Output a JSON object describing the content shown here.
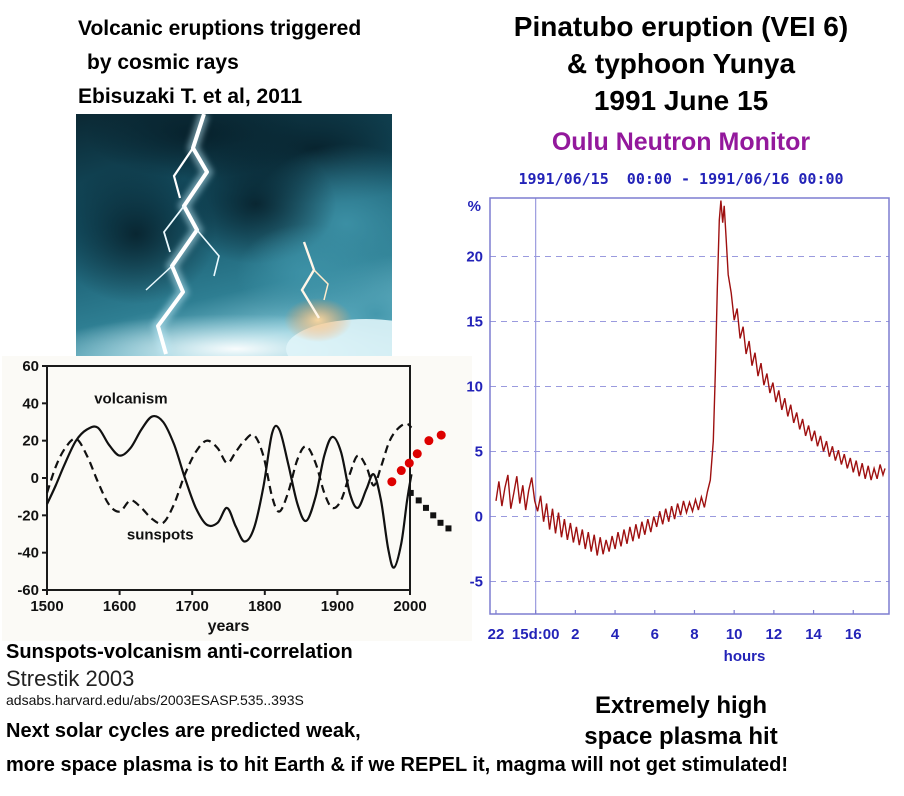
{
  "left": {
    "header_lines": [
      "Volcanic eruptions triggered",
      "by cosmic rays",
      "Ebisuzaki T. et al, 2011"
    ],
    "caption_bold": "Sunspots-volcanism anti-correlation",
    "caption_author": "Strestik 2003",
    "caption_url": "adsabs.harvard.edu/abs/2003ESASP.535..393S",
    "footer_line_1": "Next solar cycles are predicted weak,",
    "footer_line_2": "more space plasma is to hit Earth & if we REPEL it, magma will not get stimulated!"
  },
  "right": {
    "title_lines": [
      "Pinatubo eruption (VEI 6)",
      "& typhoon Yunya",
      "1991 June 15"
    ],
    "monitor_title": "Oulu Neutron Monitor",
    "monitor_title_color": "#93189c",
    "date_range": "1991/06/15  00:00 - 1991/06/16 00:00",
    "date_color": "#2323b8",
    "footer_line_1": "Extremely high",
    "footer_line_2": "space plasma hit"
  },
  "chart_data": [
    {
      "type": "line",
      "title": "Sunspots-volcanism anti-correlation (Strestik 2003)",
      "xlabel": "years",
      "ylabel": "",
      "xlim": [
        1500,
        2000
      ],
      "ylim": [
        -60,
        60
      ],
      "x_ticks": [
        1500,
        1600,
        1700,
        1800,
        1900,
        2000
      ],
      "y_ticks": [
        -60,
        -40,
        -20,
        0,
        20,
        40,
        60
      ],
      "frame_color": "#1a1a1a",
      "grid": false,
      "legend_position": "inline-labels",
      "series": [
        {
          "name": "volcanism",
          "style": "solid",
          "color": "#111111",
          "points": [
            [
              1500,
              -14
            ],
            [
              1512,
              -4
            ],
            [
              1525,
              8
            ],
            [
              1540,
              20
            ],
            [
              1555,
              26
            ],
            [
              1570,
              27
            ],
            [
              1585,
              18
            ],
            [
              1600,
              12
            ],
            [
              1615,
              16
            ],
            [
              1630,
              26
            ],
            [
              1645,
              33
            ],
            [
              1660,
              30
            ],
            [
              1675,
              18
            ],
            [
              1690,
              0
            ],
            [
              1705,
              -16
            ],
            [
              1720,
              -25
            ],
            [
              1735,
              -24
            ],
            [
              1748,
              -16
            ],
            [
              1760,
              -26
            ],
            [
              1772,
              -34
            ],
            [
              1785,
              -27
            ],
            [
              1798,
              -5
            ],
            [
              1810,
              24
            ],
            [
              1820,
              26
            ],
            [
              1832,
              8
            ],
            [
              1845,
              -14
            ],
            [
              1857,
              -23
            ],
            [
              1870,
              -10
            ],
            [
              1882,
              12
            ],
            [
              1893,
              22
            ],
            [
              1905,
              14
            ],
            [
              1917,
              -8
            ],
            [
              1928,
              -16
            ],
            [
              1940,
              -6
            ],
            [
              1950,
              2
            ],
            [
              1960,
              -12
            ],
            [
              1970,
              -38
            ],
            [
              1978,
              -48
            ],
            [
              1988,
              -35
            ],
            [
              1996,
              -12
            ],
            [
              2002,
              2
            ]
          ]
        },
        {
          "name": "sunspots",
          "style": "dashed",
          "color": "#111111",
          "points": [
            [
              1500,
              -8
            ],
            [
              1512,
              6
            ],
            [
              1525,
              16
            ],
            [
              1540,
              21
            ],
            [
              1555,
              12
            ],
            [
              1570,
              -2
            ],
            [
              1585,
              -14
            ],
            [
              1600,
              -18
            ],
            [
              1615,
              -12
            ],
            [
              1630,
              -16
            ],
            [
              1645,
              -22
            ],
            [
              1660,
              -24
            ],
            [
              1675,
              -14
            ],
            [
              1690,
              2
            ],
            [
              1705,
              14
            ],
            [
              1720,
              20
            ],
            [
              1735,
              16
            ],
            [
              1748,
              8
            ],
            [
              1760,
              14
            ],
            [
              1772,
              20
            ],
            [
              1785,
              23
            ],
            [
              1798,
              12
            ],
            [
              1810,
              -10
            ],
            [
              1820,
              -18
            ],
            [
              1832,
              -8
            ],
            [
              1845,
              10
            ],
            [
              1857,
              17
            ],
            [
              1870,
              8
            ],
            [
              1882,
              -8
            ],
            [
              1893,
              -16
            ],
            [
              1905,
              -12
            ],
            [
              1917,
              2
            ],
            [
              1928,
              12
            ],
            [
              1940,
              6
            ],
            [
              1950,
              -4
            ],
            [
              1960,
              6
            ],
            [
              1970,
              18
            ],
            [
              1978,
              24
            ],
            [
              1988,
              28
            ],
            [
              1996,
              29
            ],
            [
              2002,
              27
            ]
          ]
        }
      ],
      "annotations": [
        {
          "name": "volcanism-label",
          "x": 1565,
          "y": 40,
          "text": "volcanism"
        },
        {
          "name": "sunspots-label",
          "x": 1610,
          "y": -33,
          "text": "sunspots"
        }
      ],
      "forecast_dots": [
        {
          "name": "volcanism-forecast-dots",
          "color": "#dd0000",
          "shape": "circle",
          "points": [
            [
              1975,
              -2
            ],
            [
              1988,
              4
            ],
            [
              1999,
              8
            ],
            [
              2010,
              13
            ],
            [
              2026,
              20
            ],
            [
              2043,
              23
            ]
          ]
        },
        {
          "name": "sunspots-forecast-dots",
          "color": "#111111",
          "shape": "square",
          "points": [
            [
              2001,
              -8
            ],
            [
              2012,
              -12
            ],
            [
              2022,
              -16
            ],
            [
              2032,
              -20
            ],
            [
              2042,
              -24
            ],
            [
              2053,
              -27
            ]
          ]
        }
      ]
    },
    {
      "type": "line",
      "title": "Oulu Neutron Monitor",
      "subtitle": "1991/06/15  00:00 - 1991/06/16 00:00",
      "xlabel": "hours",
      "ylabel": "%",
      "xlim": [
        -0.3,
        19.8
      ],
      "ylim": [
        -7.5,
        24.5
      ],
      "y_ticks": [
        -5,
        0,
        5,
        10,
        15,
        20
      ],
      "x_tick_labels": [
        "22",
        "15d:00",
        "2",
        "4",
        "6",
        "8",
        "10",
        "12",
        "14",
        "16"
      ],
      "x_tick_positions": [
        0,
        2,
        4,
        6,
        8,
        10,
        12,
        14,
        16,
        18
      ],
      "vline_x": 2,
      "grid": true,
      "frame_color": "#7d7dd0",
      "grid_color": "#9a9ade",
      "axis_color": "#2323b8",
      "line_color": "#9e1010",
      "points": [
        [
          0,
          1.2
        ],
        [
          0.15,
          2.7
        ],
        [
          0.3,
          0.8
        ],
        [
          0.45,
          2.2
        ],
        [
          0.6,
          3.2
        ],
        [
          0.75,
          0.6
        ],
        [
          0.9,
          1.8
        ],
        [
          1.05,
          3.1
        ],
        [
          1.2,
          1.0
        ],
        [
          1.35,
          2.4
        ],
        [
          1.5,
          0.5
        ],
        [
          1.65,
          2.0
        ],
        [
          1.8,
          3.0
        ],
        [
          1.95,
          1.2
        ],
        [
          2.1,
          0.4
        ],
        [
          2.25,
          1.6
        ],
        [
          2.4,
          -0.4
        ],
        [
          2.55,
          1.0
        ],
        [
          2.7,
          -1.0
        ],
        [
          2.85,
          0.6
        ],
        [
          3.0,
          -1.3
        ],
        [
          3.15,
          0.3
        ],
        [
          3.3,
          -1.6
        ],
        [
          3.45,
          -0.2
        ],
        [
          3.6,
          -1.8
        ],
        [
          3.75,
          -0.5
        ],
        [
          3.9,
          -2.0
        ],
        [
          4.05,
          -0.8
        ],
        [
          4.2,
          -2.2
        ],
        [
          4.35,
          -1.0
        ],
        [
          4.5,
          -2.5
        ],
        [
          4.65,
          -1.2
        ],
        [
          4.8,
          -2.7
        ],
        [
          4.95,
          -1.4
        ],
        [
          5.1,
          -3.0
        ],
        [
          5.25,
          -1.6
        ],
        [
          5.4,
          -2.9
        ],
        [
          5.55,
          -1.8
        ],
        [
          5.7,
          -2.7
        ],
        [
          5.85,
          -1.5
        ],
        [
          6.0,
          -2.5
        ],
        [
          6.15,
          -1.2
        ],
        [
          6.3,
          -2.3
        ],
        [
          6.45,
          -1.0
        ],
        [
          6.6,
          -2.1
        ],
        [
          6.75,
          -0.8
        ],
        [
          6.9,
          -1.9
        ],
        [
          7.05,
          -0.6
        ],
        [
          7.2,
          -1.7
        ],
        [
          7.35,
          -0.4
        ],
        [
          7.5,
          -1.4
        ],
        [
          7.65,
          -0.2
        ],
        [
          7.8,
          -1.2
        ],
        [
          7.95,
          0.0
        ],
        [
          8.1,
          -0.8
        ],
        [
          8.25,
          0.4
        ],
        [
          8.4,
          -0.6
        ],
        [
          8.55,
          0.6
        ],
        [
          8.7,
          -0.4
        ],
        [
          8.85,
          0.8
        ],
        [
          9.0,
          -0.2
        ],
        [
          9.15,
          1.0
        ],
        [
          9.3,
          0.1
        ],
        [
          9.45,
          1.2
        ],
        [
          9.6,
          0.3
        ],
        [
          9.75,
          1.1
        ],
        [
          9.9,
          0.4
        ],
        [
          10.05,
          1.3
        ],
        [
          10.2,
          0.5
        ],
        [
          10.35,
          1.5
        ],
        [
          10.5,
          0.7
        ],
        [
          10.65,
          1.9
        ],
        [
          10.8,
          2.8
        ],
        [
          10.95,
          5.8
        ],
        [
          11.05,
          11.0
        ],
        [
          11.15,
          17.5
        ],
        [
          11.25,
          22.8
        ],
        [
          11.33,
          24.3
        ],
        [
          11.42,
          22.6
        ],
        [
          11.5,
          23.9
        ],
        [
          11.6,
          21.3
        ],
        [
          11.7,
          18.6
        ],
        [
          11.85,
          17.2
        ],
        [
          12.0,
          15.1
        ],
        [
          12.15,
          16.0
        ],
        [
          12.3,
          13.7
        ],
        [
          12.45,
          14.6
        ],
        [
          12.6,
          12.5
        ],
        [
          12.75,
          13.5
        ],
        [
          12.9,
          11.6
        ],
        [
          13.05,
          12.6
        ],
        [
          13.2,
          10.8
        ],
        [
          13.35,
          11.8
        ],
        [
          13.5,
          10.1
        ],
        [
          13.65,
          11.0
        ],
        [
          13.8,
          9.5
        ],
        [
          13.95,
          10.3
        ],
        [
          14.1,
          8.8
        ],
        [
          14.25,
          9.7
        ],
        [
          14.4,
          8.2
        ],
        [
          14.55,
          9.1
        ],
        [
          14.7,
          7.7
        ],
        [
          14.85,
          8.6
        ],
        [
          15.0,
          7.2
        ],
        [
          15.15,
          8.0
        ],
        [
          15.3,
          6.7
        ],
        [
          15.45,
          7.5
        ],
        [
          15.6,
          6.2
        ],
        [
          15.75,
          7.0
        ],
        [
          15.9,
          5.8
        ],
        [
          16.05,
          6.6
        ],
        [
          16.2,
          5.4
        ],
        [
          16.35,
          6.2
        ],
        [
          16.5,
          5.0
        ],
        [
          16.65,
          5.8
        ],
        [
          16.8,
          4.6
        ],
        [
          16.95,
          5.4
        ],
        [
          17.1,
          4.3
        ],
        [
          17.25,
          5.1
        ],
        [
          17.4,
          4.0
        ],
        [
          17.55,
          4.8
        ],
        [
          17.7,
          3.7
        ],
        [
          17.85,
          4.5
        ],
        [
          18.0,
          3.4
        ],
        [
          18.15,
          4.3
        ],
        [
          18.3,
          3.1
        ],
        [
          18.45,
          4.1
        ],
        [
          18.6,
          2.9
        ],
        [
          18.75,
          3.9
        ],
        [
          18.9,
          2.8
        ],
        [
          19.05,
          3.7
        ],
        [
          19.2,
          2.9
        ],
        [
          19.35,
          4.0
        ],
        [
          19.5,
          3.2
        ],
        [
          19.6,
          3.7
        ]
      ]
    }
  ]
}
